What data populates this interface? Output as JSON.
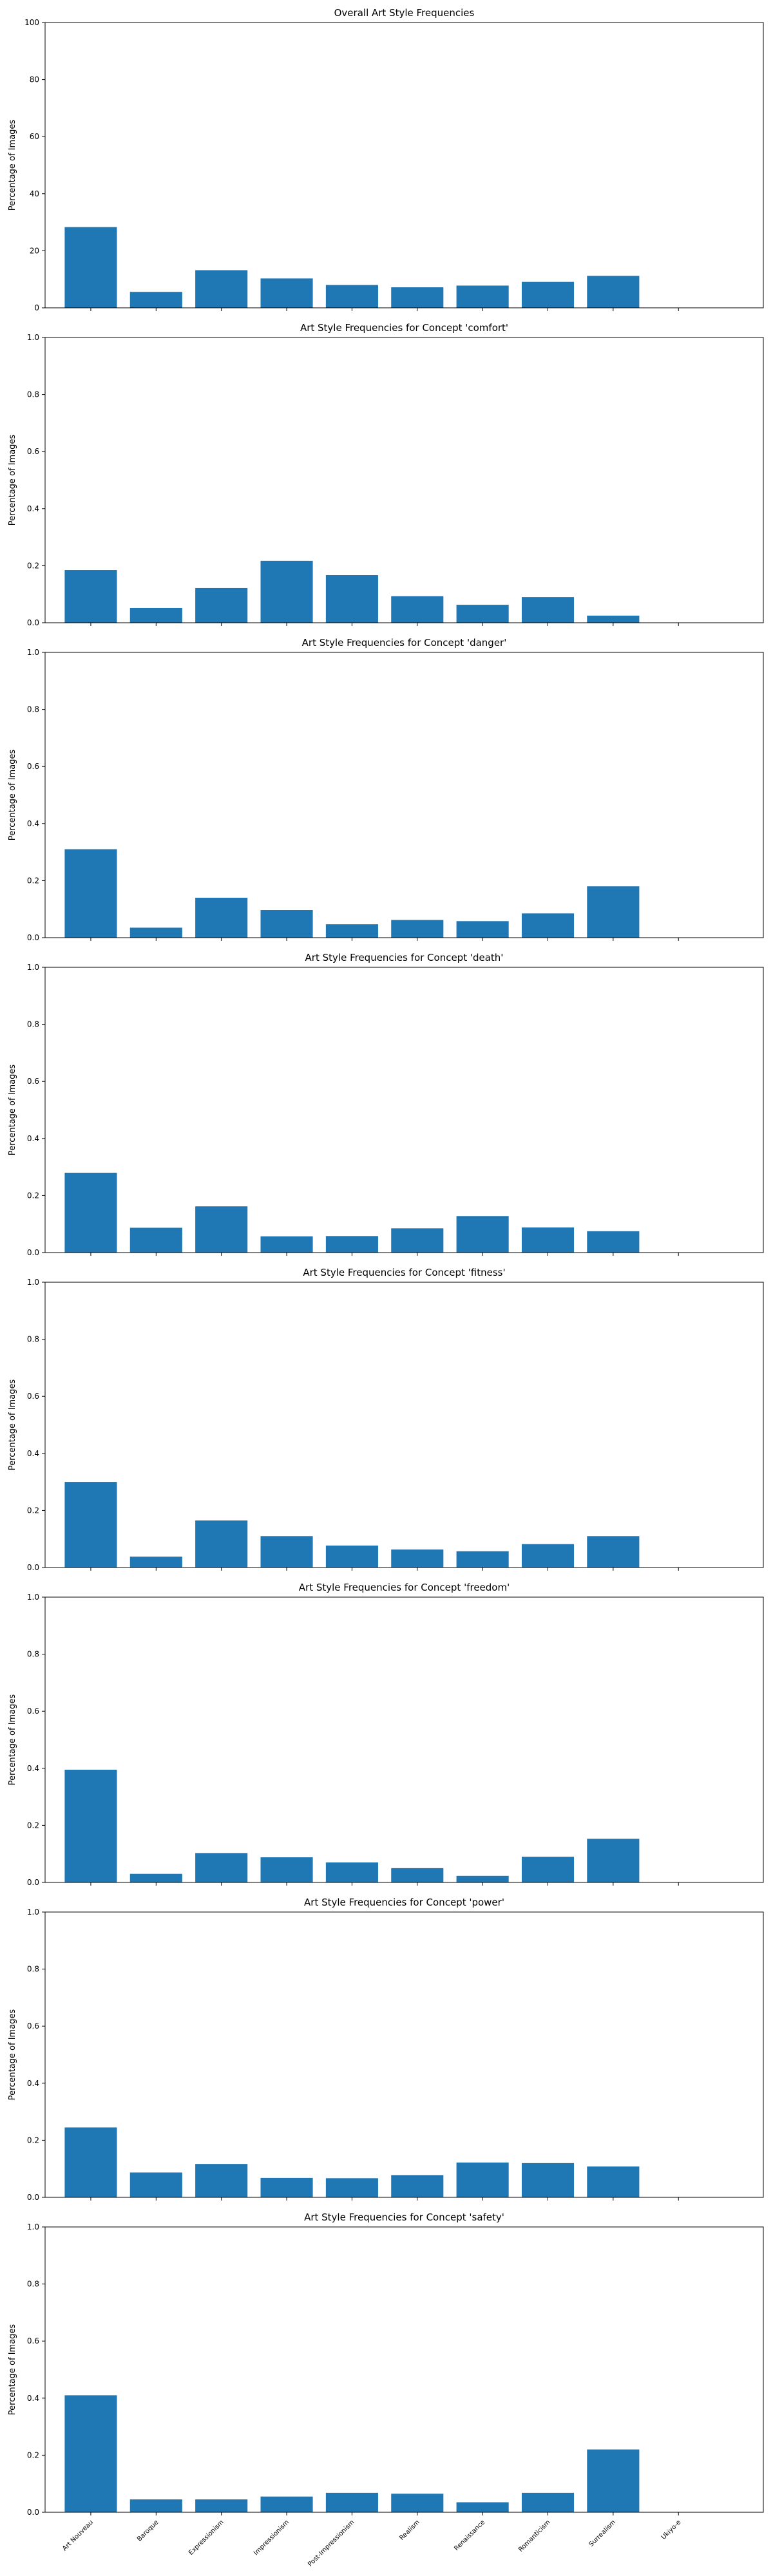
{
  "figure": {
    "categories": [
      "Art Nouveau",
      "Baroque",
      "Expressionism",
      "Impressionism",
      "Post-Impressionism",
      "Realism",
      "Renaissance",
      "Romanticism",
      "Surrealism",
      "Ukiyo-e"
    ]
  },
  "chart_data": [
    {
      "type": "bar",
      "title": "Overall Art Style Frequencies",
      "xlabel": "",
      "ylabel": "Percentage of Images",
      "ylim": [
        0,
        100
      ],
      "yticks": [
        0,
        20,
        40,
        60,
        80,
        100
      ],
      "ytick_labels": [
        "0",
        "20",
        "40",
        "60",
        "80",
        "100"
      ],
      "categories": [
        "Art Nouveau",
        "Baroque",
        "Expressionism",
        "Impressionism",
        "Post-Impressionism",
        "Realism",
        "Renaissance",
        "Romanticism",
        "Surrealism",
        "Ukiyo-e"
      ],
      "values": [
        28.3,
        5.6,
        13.2,
        10.3,
        8.0,
        7.2,
        7.8,
        9.1,
        11.2,
        0
      ],
      "color": "#1f77b4",
      "grid": false,
      "show_xtick_labels": false
    },
    {
      "type": "bar",
      "title": "Art Style Frequencies for Concept 'comfort'",
      "xlabel": "",
      "ylabel": "Percentage of Images",
      "ylim": [
        0,
        1
      ],
      "yticks": [
        0,
        0.2,
        0.4,
        0.6,
        0.8,
        1.0
      ],
      "ytick_labels": [
        "0.0",
        "0.2",
        "0.4",
        "0.6",
        "0.8",
        "1.0"
      ],
      "categories": [
        "Art Nouveau",
        "Baroque",
        "Expressionism",
        "Impressionism",
        "Post-Impressionism",
        "Realism",
        "Renaissance",
        "Romanticism",
        "Surrealism",
        "Ukiyo-e"
      ],
      "values": [
        0.185,
        0.052,
        0.122,
        0.217,
        0.167,
        0.093,
        0.063,
        0.09,
        0.025,
        0
      ],
      "color": "#1f77b4",
      "grid": false,
      "show_xtick_labels": false
    },
    {
      "type": "bar",
      "title": "Art Style Frequencies for Concept 'danger'",
      "xlabel": "",
      "ylabel": "Percentage of Images",
      "ylim": [
        0,
        1
      ],
      "yticks": [
        0,
        0.2,
        0.4,
        0.6,
        0.8,
        1.0
      ],
      "ytick_labels": [
        "0.0",
        "0.2",
        "0.4",
        "0.6",
        "0.8",
        "1.0"
      ],
      "categories": [
        "Art Nouveau",
        "Baroque",
        "Expressionism",
        "Impressionism",
        "Post-Impressionism",
        "Realism",
        "Renaissance",
        "Romanticism",
        "Surrealism",
        "Ukiyo-e"
      ],
      "values": [
        0.31,
        0.035,
        0.14,
        0.097,
        0.047,
        0.062,
        0.058,
        0.085,
        0.18,
        0
      ],
      "color": "#1f77b4",
      "grid": false,
      "show_xtick_labels": false
    },
    {
      "type": "bar",
      "title": "Art Style Frequencies for Concept 'death'",
      "xlabel": "",
      "ylabel": "Percentage of Images",
      "ylim": [
        0,
        1
      ],
      "yticks": [
        0,
        0.2,
        0.4,
        0.6,
        0.8,
        1.0
      ],
      "ytick_labels": [
        "0.0",
        "0.2",
        "0.4",
        "0.6",
        "0.8",
        "1.0"
      ],
      "categories": [
        "Art Nouveau",
        "Baroque",
        "Expressionism",
        "Impressionism",
        "Post-Impressionism",
        "Realism",
        "Renaissance",
        "Romanticism",
        "Surrealism",
        "Ukiyo-e"
      ],
      "values": [
        0.28,
        0.087,
        0.162,
        0.057,
        0.058,
        0.085,
        0.128,
        0.088,
        0.075,
        0
      ],
      "color": "#1f77b4",
      "grid": false,
      "show_xtick_labels": false
    },
    {
      "type": "bar",
      "title": "Art Style Frequencies for Concept 'fitness'",
      "xlabel": "",
      "ylabel": "Percentage of Images",
      "ylim": [
        0,
        1
      ],
      "yticks": [
        0,
        0.2,
        0.4,
        0.6,
        0.8,
        1.0
      ],
      "ytick_labels": [
        "0.0",
        "0.2",
        "0.4",
        "0.6",
        "0.8",
        "1.0"
      ],
      "categories": [
        "Art Nouveau",
        "Baroque",
        "Expressionism",
        "Impressionism",
        "Post-Impressionism",
        "Realism",
        "Renaissance",
        "Romanticism",
        "Surrealism",
        "Ukiyo-e"
      ],
      "values": [
        0.3,
        0.038,
        0.165,
        0.11,
        0.077,
        0.063,
        0.057,
        0.082,
        0.11,
        0
      ],
      "color": "#1f77b4",
      "grid": false,
      "show_xtick_labels": false
    },
    {
      "type": "bar",
      "title": "Art Style Frequencies for Concept 'freedom'",
      "xlabel": "",
      "ylabel": "Percentage of Images",
      "ylim": [
        0,
        1
      ],
      "yticks": [
        0,
        0.2,
        0.4,
        0.6,
        0.8,
        1.0
      ],
      "ytick_labels": [
        "0.0",
        "0.2",
        "0.4",
        "0.6",
        "0.8",
        "1.0"
      ],
      "categories": [
        "Art Nouveau",
        "Baroque",
        "Expressionism",
        "Impressionism",
        "Post-Impressionism",
        "Realism",
        "Renaissance",
        "Romanticism",
        "Surrealism",
        "Ukiyo-e"
      ],
      "values": [
        0.395,
        0.03,
        0.103,
        0.088,
        0.07,
        0.05,
        0.023,
        0.09,
        0.153,
        0
      ],
      "color": "#1f77b4",
      "grid": false,
      "show_xtick_labels": false
    },
    {
      "type": "bar",
      "title": "Art Style Frequencies for Concept 'power'",
      "xlabel": "",
      "ylabel": "Percentage of Images",
      "ylim": [
        0,
        1
      ],
      "yticks": [
        0,
        0.2,
        0.4,
        0.6,
        0.8,
        1.0
      ],
      "ytick_labels": [
        "0.0",
        "0.2",
        "0.4",
        "0.6",
        "0.8",
        "1.0"
      ],
      "categories": [
        "Art Nouveau",
        "Baroque",
        "Expressionism",
        "Impressionism",
        "Post-Impressionism",
        "Realism",
        "Renaissance",
        "Romanticism",
        "Surrealism",
        "Ukiyo-e"
      ],
      "values": [
        0.245,
        0.087,
        0.117,
        0.068,
        0.067,
        0.078,
        0.122,
        0.12,
        0.108,
        0
      ],
      "color": "#1f77b4",
      "grid": false,
      "show_xtick_labels": false
    },
    {
      "type": "bar",
      "title": "Art Style Frequencies for Concept 'safety'",
      "xlabel": "",
      "ylabel": "Percentage of Images",
      "ylim": [
        0,
        1
      ],
      "yticks": [
        0,
        0.2,
        0.4,
        0.6,
        0.8,
        1.0
      ],
      "ytick_labels": [
        "0.0",
        "0.2",
        "0.4",
        "0.6",
        "0.8",
        "1.0"
      ],
      "categories": [
        "Art Nouveau",
        "Baroque",
        "Expressionism",
        "Impressionism",
        "Post-Impressionism",
        "Realism",
        "Renaissance",
        "Romanticism",
        "Surrealism",
        "Ukiyo-e"
      ],
      "values": [
        0.41,
        0.045,
        0.045,
        0.055,
        0.068,
        0.065,
        0.035,
        0.068,
        0.22,
        0
      ],
      "color": "#1f77b4",
      "grid": false,
      "show_xtick_labels": true
    }
  ]
}
